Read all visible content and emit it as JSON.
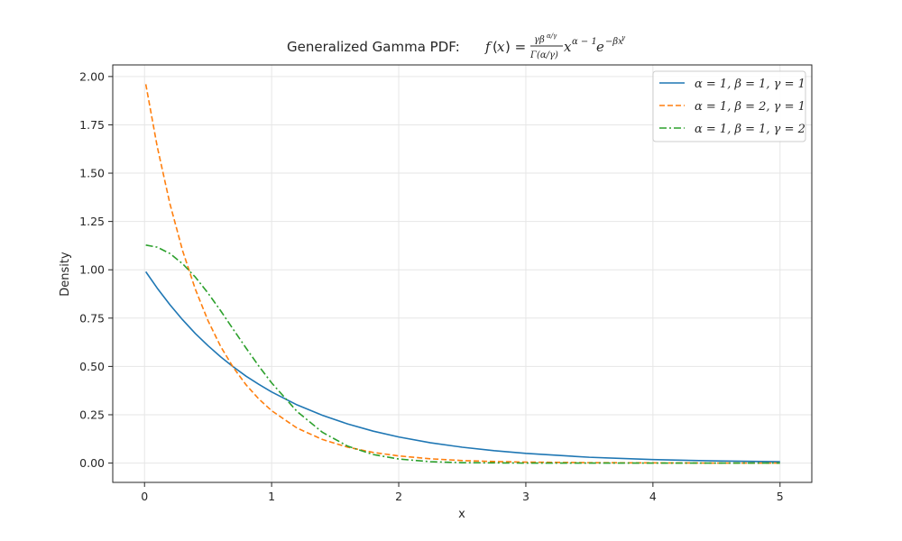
{
  "chart_data": {
    "type": "line",
    "title": "Generalized Gamma PDF: ",
    "title_formula": "f(x) = γβ^(α/γ) / Γ(α/γ) · x^(α−1) e^(−βx^γ)",
    "xlabel": "x",
    "ylabel": "Density",
    "xlim": [
      -0.25,
      5.25
    ],
    "ylim": [
      -0.1,
      2.06
    ],
    "xticks": [
      0,
      1,
      2,
      3,
      4,
      5
    ],
    "xtick_labels": [
      "0",
      "1",
      "2",
      "3",
      "4",
      "5"
    ],
    "yticks": [
      0,
      0.25,
      0.5,
      0.75,
      1.0,
      1.25,
      1.5,
      1.75,
      2.0
    ],
    "ytick_labels": [
      "0.00",
      "0.25",
      "0.50",
      "0.75",
      "1.00",
      "1.25",
      "1.50",
      "1.75",
      "2.00"
    ],
    "grid": true,
    "legend_position": "top-right",
    "x": [
      0.01,
      0.1,
      0.2,
      0.3,
      0.4,
      0.5,
      0.6,
      0.7,
      0.8,
      0.9,
      1.0,
      1.2,
      1.4,
      1.6,
      1.8,
      2.0,
      2.25,
      2.5,
      2.75,
      3.0,
      3.5,
      4.0,
      4.5,
      5.0
    ],
    "series": [
      {
        "name": "α = 1, β = 1, γ = 1",
        "style": "solid",
        "color": "#1f77b4",
        "values": [
          0.99,
          0.905,
          0.819,
          0.741,
          0.67,
          0.607,
          0.549,
          0.497,
          0.449,
          0.407,
          0.368,
          0.301,
          0.247,
          0.202,
          0.165,
          0.135,
          0.105,
          0.082,
          0.064,
          0.05,
          0.03,
          0.018,
          0.011,
          0.007
        ]
      },
      {
        "name": "α = 1, β = 2, γ = 1",
        "style": "dashed",
        "color": "#ff7f0e",
        "values": [
          1.96,
          1.637,
          1.341,
          1.098,
          0.899,
          0.736,
          0.602,
          0.493,
          0.404,
          0.331,
          0.271,
          0.181,
          0.122,
          0.082,
          0.055,
          0.037,
          0.022,
          0.013,
          0.008,
          0.005,
          0.002,
          0.001,
          0.0,
          0.0
        ]
      },
      {
        "name": "α = 1, β = 1, γ = 2",
        "style": "dashdot",
        "color": "#2ca02c",
        "values": [
          1.128,
          1.117,
          1.084,
          1.031,
          0.962,
          0.879,
          0.787,
          0.69,
          0.594,
          0.501,
          0.415,
          0.267,
          0.159,
          0.087,
          0.044,
          0.021,
          0.007,
          0.002,
          0.001,
          0.0,
          0.0,
          0.0,
          0.0,
          0.0
        ]
      }
    ]
  }
}
